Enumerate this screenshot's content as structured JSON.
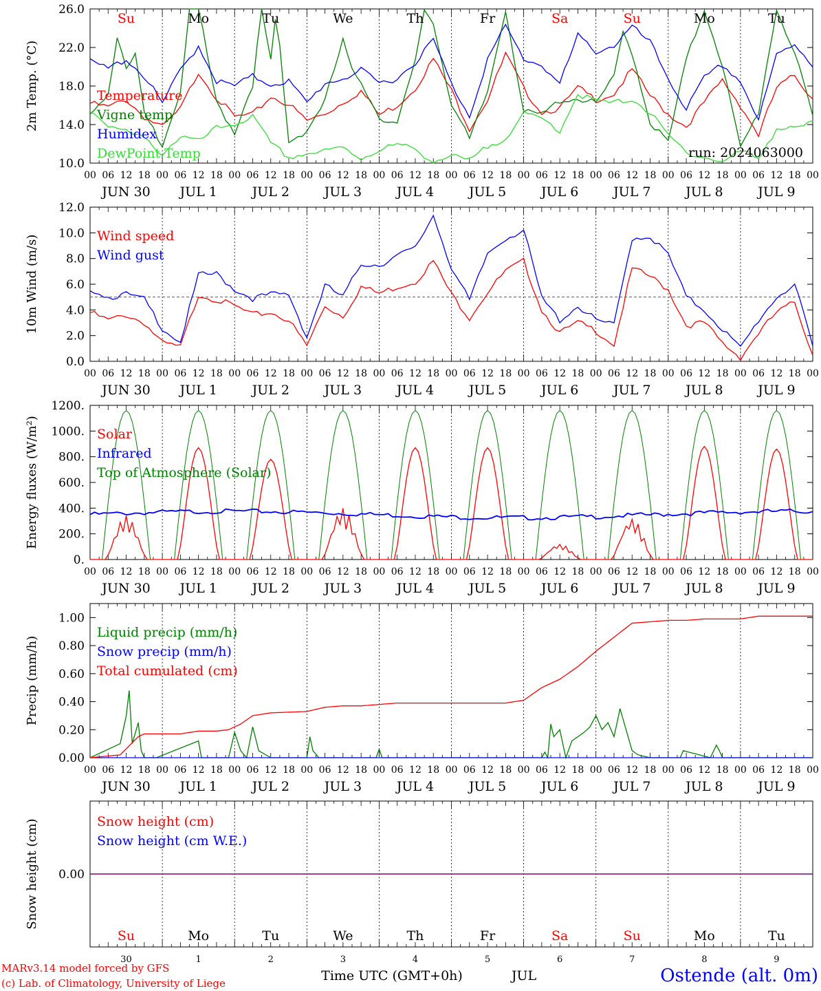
{
  "colors": {
    "red": "#ff0000",
    "dark_green": "#008000",
    "blue": "#0000ff",
    "light_green": "#33dd33",
    "purple": "#7f007f",
    "black": "#000000"
  },
  "header": {
    "run_label": "run: 2024063000"
  },
  "footer": {
    "model_line": "MARv3.14 model forced by GFS",
    "credit_line": "(c) Lab. of Climatology, University of Liege",
    "time_axis_label": "Time UTC (GMT+0h)",
    "month_label": "JUL",
    "station_label": "Ostende (alt. 0m)"
  },
  "time_axis": {
    "hour_labels": [
      "00",
      "06",
      "12",
      "18"
    ],
    "end_label": "00",
    "date_labels": [
      "JUN 30",
      "JUL  1",
      "JUL  2",
      "JUL  3",
      "JUL  4",
      "JUL  5",
      "JUL  6",
      "JUL  7",
      "JUL  8",
      "JUL  9"
    ],
    "weekdays": [
      "Su",
      "Mo",
      "Tu",
      "We",
      "Th",
      "Fr",
      "Sa",
      "Su",
      "Mo",
      "Tu"
    ],
    "weekday_colors": [
      "#ff0000",
      "#000000",
      "#000000",
      "#000000",
      "#000000",
      "#000000",
      "#ff0000",
      "#ff0000",
      "#000000",
      "#000000"
    ],
    "day_numbers": [
      "30",
      "1",
      "2",
      "3",
      "4",
      "5",
      "6",
      "7",
      "8",
      "9"
    ]
  },
  "chart_data": [
    {
      "type": "line",
      "ylabel": "2m Temp. (°C)",
      "ylim": [
        10.0,
        26.0
      ],
      "yticks": [
        "10.0",
        "14.0",
        "18.0",
        "22.0",
        "26.0"
      ],
      "x_unit": "hours since 2024-06-30 00 UTC",
      "xlim": [
        0,
        240
      ],
      "series": [
        {
          "name": "Temperature",
          "color": "#ff0000",
          "x": [
            0,
            6,
            12,
            18,
            24,
            30,
            36,
            42,
            48,
            54,
            60,
            66,
            72,
            78,
            84,
            90,
            96,
            102,
            108,
            114,
            120,
            126,
            132,
            138,
            144,
            150,
            156,
            162,
            168,
            174,
            180,
            186,
            192,
            198,
            204,
            210,
            216,
            222,
            228,
            234,
            240
          ],
          "y": [
            16.2,
            15.8,
            16.6,
            14.8,
            13.7,
            15.6,
            19.5,
            16.8,
            14.8,
            15.0,
            16.9,
            16.1,
            14.4,
            15.1,
            16.3,
            17.5,
            15.0,
            16.0,
            17.8,
            20.8,
            17.5,
            13.6,
            16.6,
            21.3,
            17.7,
            15.3,
            15.7,
            17.8,
            16.6,
            17.2,
            19.7,
            17.0,
            15.1,
            13.8,
            16.3,
            18.6,
            16.0,
            12.9,
            17.8,
            19.1,
            16.7
          ]
        },
        {
          "name": "Vigne temp",
          "color": "#008000",
          "x": [
            0,
            6,
            9,
            12,
            15,
            18,
            24,
            30,
            33,
            36,
            42,
            48,
            54,
            57,
            60,
            62,
            64,
            66,
            72,
            78,
            84,
            87,
            90,
            96,
            102,
            108,
            111,
            114,
            120,
            126,
            132,
            138,
            144,
            150,
            156,
            162,
            168,
            174,
            177,
            180,
            186,
            192,
            198,
            204,
            210,
            216,
            222,
            228,
            234,
            240
          ],
          "y": [
            15.4,
            17.2,
            23.3,
            19.5,
            21.2,
            15.0,
            12.0,
            17.4,
            26.0,
            26.0,
            16.2,
            13.2,
            18.2,
            26.0,
            20.5,
            26.0,
            18.3,
            12.2,
            13.4,
            16.5,
            22.7,
            19.5,
            18.5,
            14.8,
            14.0,
            20.5,
            26.0,
            24.5,
            16.2,
            12.4,
            17.4,
            26.0,
            15.3,
            15.0,
            16.5,
            16.7,
            16.2,
            18.9,
            23.6,
            21.5,
            14.2,
            12.2,
            20.7,
            26.0,
            20.2,
            11.5,
            15.3,
            26.0,
            21.4,
            14.8
          ]
        },
        {
          "name": "Humidex",
          "color": "#0000ff",
          "x": [
            0,
            6,
            12,
            18,
            24,
            30,
            36,
            42,
            48,
            54,
            60,
            66,
            72,
            78,
            84,
            90,
            96,
            102,
            108,
            114,
            120,
            126,
            132,
            138,
            144,
            150,
            156,
            162,
            168,
            174,
            180,
            186,
            192,
            198,
            204,
            210,
            216,
            222,
            228,
            234,
            240
          ],
          "y": [
            20.5,
            19.8,
            20.8,
            19.0,
            16.2,
            19.6,
            22.2,
            18.5,
            18.0,
            19.0,
            18.2,
            18.5,
            16.2,
            18.3,
            18.8,
            19.6,
            18.3,
            18.8,
            20.5,
            22.8,
            18.2,
            14.9,
            20.8,
            24.2,
            20.8,
            20.2,
            18.2,
            23.2,
            21.6,
            22.2,
            24.1,
            22.5,
            18.8,
            15.6,
            18.8,
            20.2,
            18.5,
            14.4,
            21.2,
            22.4,
            20.2
          ]
        },
        {
          "name": "DewPoint Temp",
          "color": "#33dd33",
          "x": [
            0,
            6,
            12,
            18,
            24,
            30,
            36,
            42,
            48,
            54,
            60,
            66,
            72,
            78,
            84,
            90,
            96,
            102,
            108,
            114,
            120,
            126,
            132,
            138,
            144,
            150,
            156,
            162,
            168,
            174,
            180,
            186,
            192,
            198,
            204,
            210,
            216,
            222,
            228,
            234,
            240
          ],
          "y": [
            15.5,
            14.0,
            13.2,
            12.5,
            11.0,
            12.8,
            12.2,
            13.6,
            14.1,
            14.8,
            12.0,
            10.6,
            11.0,
            11.2,
            11.6,
            10.5,
            11.4,
            11.9,
            11.4,
            10.2,
            10.7,
            10.2,
            11.7,
            12.7,
            15.0,
            14.6,
            13.4,
            17.2,
            16.4,
            16.2,
            16.7,
            15.2,
            12.8,
            11.2,
            10.6,
            10.1,
            11.2,
            10.6,
            13.6,
            13.5,
            14.2
          ]
        }
      ]
    },
    {
      "type": "line",
      "ylabel": "10m Wind (m/s)",
      "ylim": [
        0.0,
        12.0
      ],
      "yticks": [
        "0.0",
        "2.0",
        "4.0",
        "6.0",
        "8.0",
        "10.0",
        "12.0"
      ],
      "reference_line": 5.0,
      "xlim": [
        0,
        240
      ],
      "series": [
        {
          "name": "Wind speed",
          "color": "#ff0000",
          "x": [
            0,
            6,
            12,
            18,
            24,
            30,
            36,
            42,
            48,
            54,
            60,
            66,
            72,
            78,
            84,
            90,
            96,
            102,
            108,
            114,
            120,
            126,
            132,
            138,
            144,
            150,
            156,
            162,
            168,
            174,
            180,
            186,
            192,
            198,
            204,
            210,
            216,
            222,
            228,
            234,
            240
          ],
          "y": [
            3.8,
            3.2,
            3.6,
            3.0,
            1.4,
            1.1,
            5.2,
            4.8,
            4.3,
            3.6,
            3.8,
            3.2,
            1.2,
            4.3,
            3.5,
            5.8,
            5.3,
            5.8,
            6.2,
            7.8,
            5.2,
            3.4,
            5.4,
            7.0,
            7.8,
            4.0,
            2.2,
            3.0,
            2.4,
            1.3,
            7.2,
            6.6,
            5.6,
            2.8,
            3.0,
            1.4,
            0.3,
            2.2,
            3.8,
            4.6,
            0.5
          ]
        },
        {
          "name": "Wind gust",
          "color": "#0000ff",
          "x": [
            0,
            6,
            12,
            18,
            24,
            30,
            36,
            42,
            48,
            54,
            60,
            66,
            72,
            78,
            84,
            90,
            96,
            102,
            108,
            114,
            120,
            126,
            132,
            138,
            144,
            150,
            156,
            162,
            168,
            174,
            180,
            186,
            192,
            198,
            204,
            210,
            216,
            222,
            228,
            234,
            240
          ],
          "y": [
            5.7,
            5.0,
            5.2,
            4.8,
            2.6,
            1.5,
            6.7,
            6.8,
            5.6,
            4.9,
            5.2,
            5.2,
            1.9,
            5.9,
            5.0,
            7.6,
            7.5,
            8.2,
            8.8,
            11.4,
            7.3,
            4.7,
            8.4,
            9.6,
            10.2,
            4.9,
            3.2,
            4.3,
            3.2,
            2.8,
            9.6,
            9.7,
            8.3,
            5.0,
            4.0,
            2.5,
            1.0,
            3.2,
            5.0,
            6.0,
            1.1
          ]
        }
      ]
    },
    {
      "type": "line",
      "ylabel": "Energy fluxes (W/m²)",
      "ylim": [
        0,
        1200
      ],
      "yticks": [
        "0.",
        "200.",
        "400.",
        "600.",
        "800.",
        "1000.",
        "1200."
      ],
      "xlim": [
        0,
        240
      ],
      "series": [
        {
          "name": "Solar",
          "color": "#ff0000",
          "daily_peaks": [
            340,
            870,
            780,
            400,
            870,
            870,
            120,
            320,
            880,
            860
          ]
        },
        {
          "name": "Infrared",
          "color": "#0000ff",
          "approx_value": 350
        },
        {
          "name": "Top of Atmosphere (Solar)",
          "color": "#008000",
          "daily_peak": 1160,
          "daylight_hours": [
            4,
            20
          ]
        }
      ]
    },
    {
      "type": "line",
      "ylabel": "Precip (mm/h)",
      "ylim": [
        0.0,
        1.1
      ],
      "yticks": [
        "0.00",
        "0.20",
        "0.40",
        "0.60",
        "0.80",
        "1.00"
      ],
      "xlim": [
        0,
        240
      ],
      "series": [
        {
          "name": "Liquid precip (mm/h)",
          "color": "#008000",
          "x": [
            0,
            10,
            12,
            13,
            14,
            16,
            17,
            18,
            22,
            36,
            37,
            38,
            46,
            48,
            50,
            52,
            54,
            56,
            60,
            72,
            73,
            74,
            76,
            78,
            95,
            96,
            97,
            150,
            151,
            152,
            153,
            154,
            156,
            158,
            160,
            162,
            164,
            166,
            168,
            170,
            172,
            174,
            176,
            178,
            180,
            182,
            186,
            196,
            197,
            206,
            208,
            209,
            210
          ],
          "y": [
            0,
            0.1,
            0.3,
            0.48,
            0.1,
            0.25,
            0.05,
            0,
            0,
            0.12,
            0,
            0,
            0,
            0.18,
            0.05,
            0,
            0.22,
            0.05,
            0,
            0,
            0.15,
            0.05,
            0,
            0,
            0,
            0.06,
            0,
            0,
            0.04,
            0,
            0.24,
            0.15,
            0.2,
            0,
            0.12,
            0.15,
            0.18,
            0.22,
            0.3,
            0.2,
            0.25,
            0.15,
            0.35,
            0.2,
            0.05,
            0.02,
            0,
            0,
            0.05,
            0,
            0.09,
            0.05,
            0
          ]
        },
        {
          "name": "Snow precip (mm/h)",
          "color": "#0000ff",
          "approx_value": 0.0
        },
        {
          "name": "Total cumulated (cm)",
          "color": "#ff0000",
          "x": [
            0,
            10,
            16,
            18,
            24,
            30,
            36,
            42,
            46,
            50,
            54,
            60,
            72,
            78,
            84,
            90,
            96,
            102,
            108,
            114,
            120,
            126,
            132,
            138,
            144,
            150,
            156,
            162,
            168,
            174,
            180,
            186,
            192,
            198,
            204,
            210,
            216,
            222,
            228,
            234,
            240
          ],
          "y": [
            0,
            0.02,
            0.15,
            0.17,
            0.17,
            0.17,
            0.19,
            0.19,
            0.2,
            0.24,
            0.3,
            0.32,
            0.33,
            0.36,
            0.37,
            0.37,
            0.38,
            0.39,
            0.39,
            0.39,
            0.39,
            0.39,
            0.39,
            0.39,
            0.41,
            0.5,
            0.56,
            0.65,
            0.76,
            0.86,
            0.96,
            0.97,
            0.98,
            0.98,
            0.99,
            0.99,
            0.99,
            1.01,
            1.01,
            1.01,
            1.01
          ]
        }
      ]
    },
    {
      "type": "line",
      "ylabel": "Snow height (cm)",
      "yticks": [
        "0.00"
      ],
      "xlim": [
        0,
        240
      ],
      "series": [
        {
          "name": "Snow height (cm)",
          "color": "#ff0000",
          "approx_value": 0.0
        },
        {
          "name": "Snow height (cm W.E.)",
          "color": "#0000ff",
          "approx_value": 0.0
        }
      ]
    }
  ]
}
